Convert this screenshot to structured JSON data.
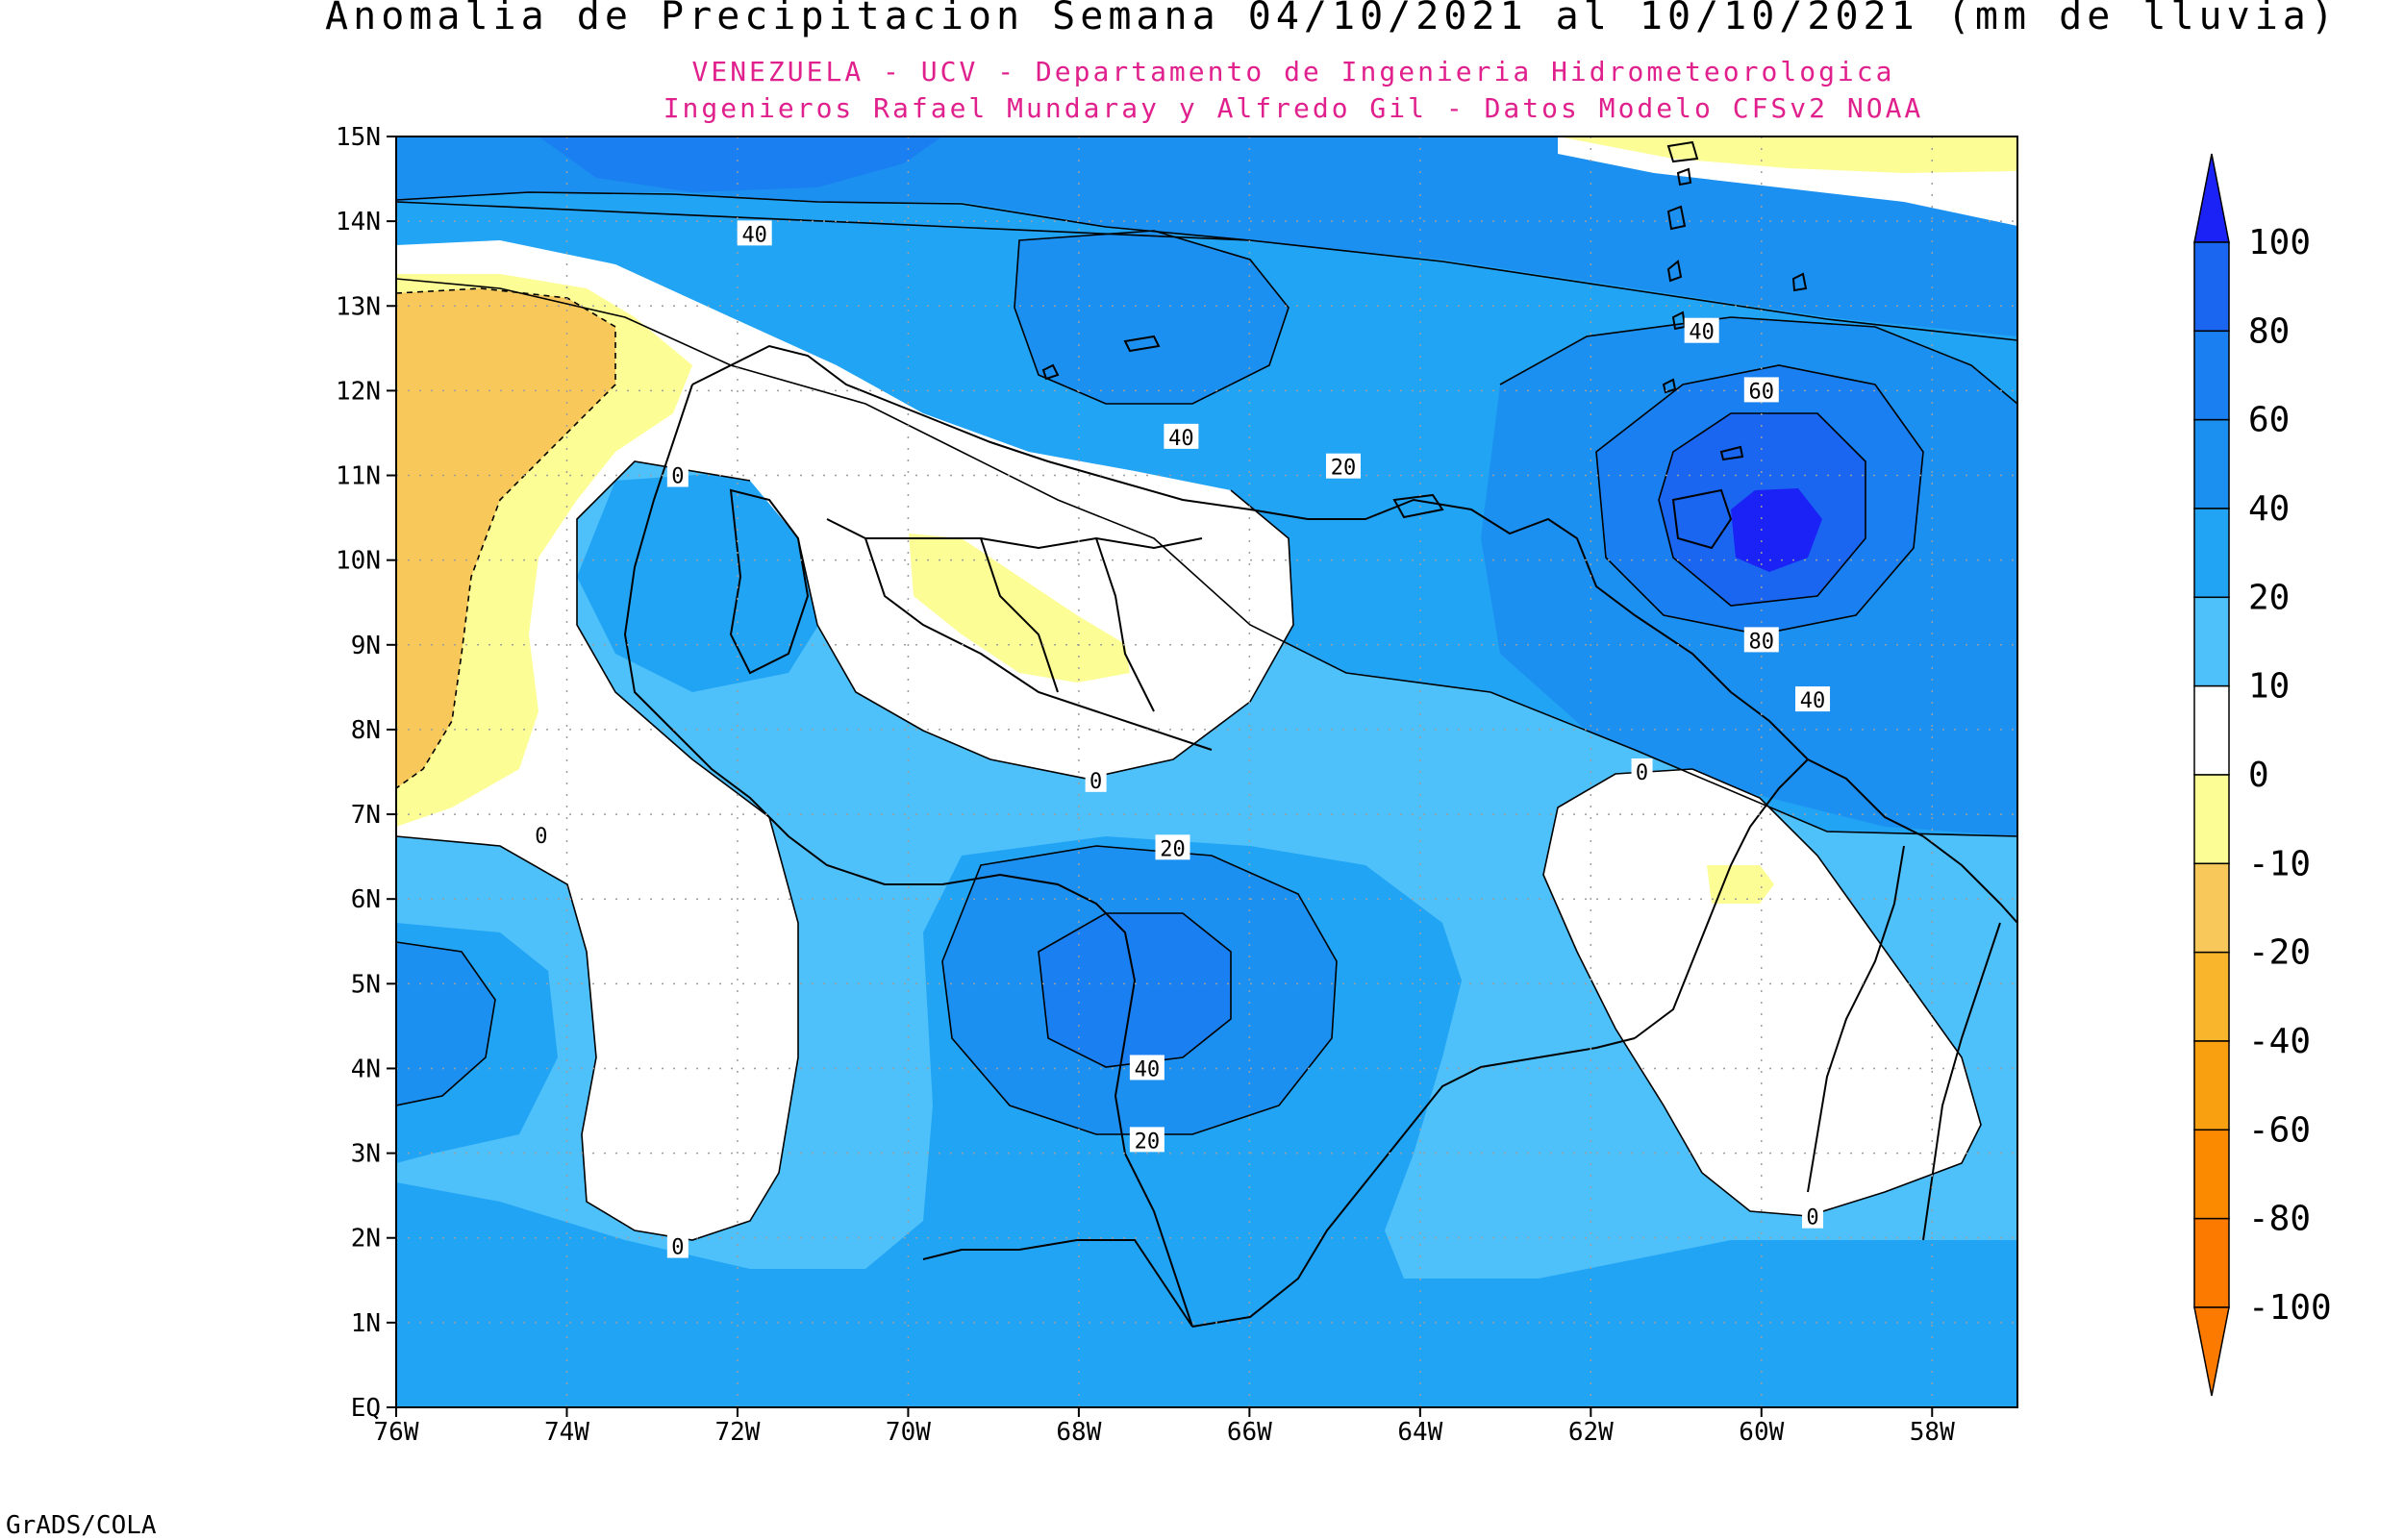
{
  "title": "Anomalia de Precipitacion Semana 04/10/2021 al 10/10/2021 (mm de lluvia)",
  "subtitle_line1": "VENEZUELA - UCV - Departamento de Ingenieria Hidrometeorologica",
  "subtitle_line2": "Ingenieros Rafael Mundaray y Alfredo Gil - Datos Modelo CFSv2 NOAA",
  "subtitle_color": "#e0208c",
  "footer": "GrADS/COLA",
  "map": {
    "lon_range": [
      -76,
      -57
    ],
    "lat_range": [
      0,
      15
    ],
    "lon_ticks": [
      {
        "lon": -76,
        "label": "76W"
      },
      {
        "lon": -74,
        "label": "74W"
      },
      {
        "lon": -72,
        "label": "72W"
      },
      {
        "lon": -70,
        "label": "70W"
      },
      {
        "lon": -68,
        "label": "68W"
      },
      {
        "lon": -66,
        "label": "66W"
      },
      {
        "lon": -64,
        "label": "64W"
      },
      {
        "lon": -62,
        "label": "62W"
      },
      {
        "lon": -60,
        "label": "60W"
      },
      {
        "lon": -58,
        "label": "58W"
      }
    ],
    "lat_ticks": [
      {
        "lat": 0,
        "label": "EQ"
      },
      {
        "lat": 1,
        "label": "1N"
      },
      {
        "lat": 2,
        "label": "2N"
      },
      {
        "lat": 3,
        "label": "3N"
      },
      {
        "lat": 4,
        "label": "4N"
      },
      {
        "lat": 5,
        "label": "5N"
      },
      {
        "lat": 6,
        "label": "6N"
      },
      {
        "lat": 7,
        "label": "7N"
      },
      {
        "lat": 8,
        "label": "8N"
      },
      {
        "lat": 9,
        "label": "9N"
      },
      {
        "lat": 10,
        "label": "10N"
      },
      {
        "lat": 11,
        "label": "11N"
      },
      {
        "lat": 12,
        "label": "12N"
      },
      {
        "lat": 13,
        "label": "13N"
      },
      {
        "lat": 14,
        "label": "14N"
      },
      {
        "lat": 15,
        "label": "15N"
      }
    ],
    "contour_labels": [
      {
        "text": "40",
        "lon": -71.8,
        "lat": 13.85
      },
      {
        "text": "40",
        "lon": -66.8,
        "lat": 11.45
      },
      {
        "text": "20",
        "lon": -64.9,
        "lat": 11.1
      },
      {
        "text": "40",
        "lon": -60.7,
        "lat": 12.7
      },
      {
        "text": "60",
        "lon": -60.0,
        "lat": 12.0
      },
      {
        "text": "80",
        "lon": -60.0,
        "lat": 9.05
      },
      {
        "text": "40",
        "lon": -59.4,
        "lat": 8.35
      },
      {
        "text": "0",
        "lon": -72.7,
        "lat": 11.0
      },
      {
        "text": "0",
        "lon": -67.8,
        "lat": 7.4
      },
      {
        "text": "0",
        "lon": -61.4,
        "lat": 7.5
      },
      {
        "text": "0",
        "lon": -74.3,
        "lat": 6.75
      },
      {
        "text": "0",
        "lon": -72.7,
        "lat": 1.9
      },
      {
        "text": "0",
        "lon": -59.4,
        "lat": 2.25
      },
      {
        "text": "20",
        "lon": -66.9,
        "lat": 6.6
      },
      {
        "text": "40",
        "lon": -67.2,
        "lat": 4.0
      },
      {
        "text": "20",
        "lon": -67.2,
        "lat": 3.15
      }
    ]
  },
  "colorbar": {
    "levels": [
      "100",
      "80",
      "60",
      "40",
      "20",
      "10",
      "0",
      "-10",
      "-20",
      "-40",
      "-60",
      "-80",
      "-100"
    ],
    "colors": [
      "#1a22f5",
      "#1a66f0",
      "#1a7ff0",
      "#1c90f0",
      "#22a4f5",
      "#4ec0fa",
      "#ffffff",
      "#fdfd96",
      "#f9c85a",
      "#f9b52c",
      "#f9a010",
      "#fb8a00",
      "#fd7a00"
    ]
  },
  "colors": {
    "c100": "#1a22f5",
    "c80": "#1a66f0",
    "c60": "#1a7ff0",
    "c40": "#1c90f0",
    "c20": "#22a4f5",
    "c10": "#4ec0fa",
    "c0": "#ffffff",
    "cn10": "#fdfd96",
    "cn20": "#f9c85a"
  }
}
